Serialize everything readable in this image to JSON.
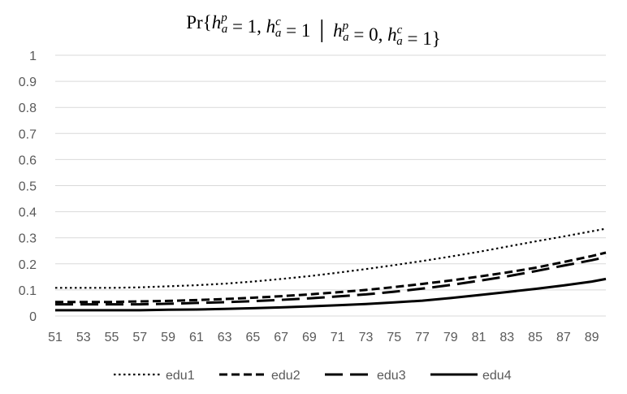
{
  "chart_data": {
    "type": "line",
    "title": "Pr{h_a^p = 1, h_a^c = 1 | h_a^p = 0, h_a^c = 1}",
    "xlabel": "",
    "ylabel": "",
    "ylim": [
      0,
      1
    ],
    "y_ticks": [
      "0",
      "0.1",
      "0.2",
      "0.3",
      "0.4",
      "0.5",
      "0.6",
      "0.7",
      "0.8",
      "0.9",
      "1"
    ],
    "x_range": [
      51,
      90
    ],
    "x_ticks": [
      "51",
      "53",
      "55",
      "57",
      "59",
      "61",
      "63",
      "65",
      "67",
      "69",
      "71",
      "73",
      "75",
      "77",
      "79",
      "81",
      "83",
      "85",
      "87",
      "89"
    ],
    "grid": true,
    "legend_position": "bottom",
    "x": [
      51,
      53,
      55,
      57,
      59,
      61,
      63,
      65,
      67,
      69,
      71,
      73,
      75,
      77,
      79,
      81,
      83,
      85,
      87,
      89,
      90
    ],
    "series": [
      {
        "name": "edu1",
        "style": "dotted",
        "values": [
          0.108,
          0.108,
          0.108,
          0.11,
          0.114,
          0.118,
          0.124,
          0.132,
          0.142,
          0.153,
          0.166,
          0.18,
          0.195,
          0.211,
          0.228,
          0.246,
          0.266,
          0.286,
          0.305,
          0.325,
          0.335
        ]
      },
      {
        "name": "edu2",
        "style": "dashed",
        "values": [
          0.054,
          0.054,
          0.054,
          0.056,
          0.058,
          0.061,
          0.065,
          0.07,
          0.076,
          0.083,
          0.091,
          0.1,
          0.111,
          0.123,
          0.136,
          0.151,
          0.167,
          0.185,
          0.207,
          0.23,
          0.243
        ]
      },
      {
        "name": "edu3",
        "style": "long-dash",
        "values": [
          0.045,
          0.045,
          0.045,
          0.045,
          0.047,
          0.05,
          0.053,
          0.057,
          0.062,
          0.068,
          0.075,
          0.083,
          0.093,
          0.105,
          0.119,
          0.135,
          0.152,
          0.172,
          0.193,
          0.214,
          0.226
        ]
      },
      {
        "name": "edu4",
        "style": "solid",
        "values": [
          0.022,
          0.022,
          0.022,
          0.022,
          0.024,
          0.025,
          0.027,
          0.03,
          0.033,
          0.037,
          0.041,
          0.046,
          0.052,
          0.059,
          0.069,
          0.08,
          0.092,
          0.104,
          0.117,
          0.132,
          0.142
        ]
      }
    ],
    "colors": {
      "line": "#000000",
      "grid": "#d9d9d9",
      "tick": "#595959"
    }
  }
}
